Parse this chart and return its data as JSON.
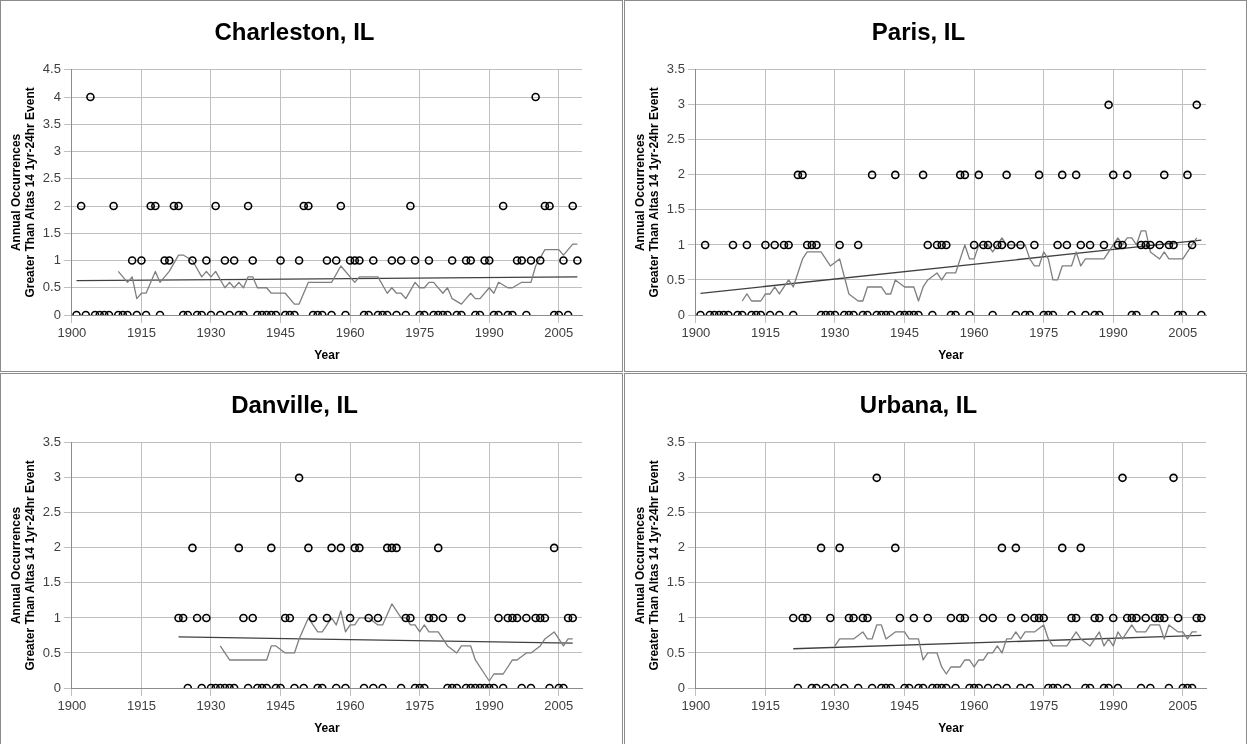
{
  "chart_data": [
    {
      "type": "scatter",
      "title": "Charleston, IL",
      "xlabel": "Year",
      "ylabel": "Annual Occurrences\nGreater Than Altas 14 1yr-24hr Event",
      "xlim": [
        1900,
        2010
      ],
      "xticks": [
        1900,
        1915,
        1930,
        1945,
        1960,
        1975,
        1990,
        2005
      ],
      "ylim": [
        0,
        4.5
      ],
      "yticks": [
        0,
        0.5,
        1,
        1.5,
        2,
        2.5,
        3,
        3.5,
        4,
        4.5
      ],
      "grid": true,
      "series": [
        {
          "type": "scatter",
          "marker": "circle",
          "color": "#000000",
          "x": [
            1901,
            1902,
            1903,
            1904,
            1905,
            1906,
            1907,
            1908,
            1909,
            1910,
            1911,
            1912,
            1913,
            1914,
            1915,
            1916,
            1917,
            1918,
            1919,
            1920,
            1921,
            1922,
            1923,
            1924,
            1925,
            1926,
            1927,
            1928,
            1929,
            1930,
            1931,
            1932,
            1933,
            1934,
            1935,
            1936,
            1937,
            1938,
            1939,
            1940,
            1941,
            1942,
            1943,
            1944,
            1945,
            1946,
            1947,
            1948,
            1949,
            1950,
            1951,
            1952,
            1953,
            1954,
            1955,
            1956,
            1957,
            1958,
            1959,
            1960,
            1961,
            1962,
            1963,
            1964,
            1965,
            1966,
            1967,
            1968,
            1969,
            1970,
            1971,
            1972,
            1973,
            1974,
            1975,
            1976,
            1977,
            1978,
            1979,
            1980,
            1981,
            1982,
            1983,
            1984,
            1985,
            1986,
            1987,
            1988,
            1989,
            1990,
            1991,
            1992,
            1993,
            1994,
            1995,
            1996,
            1997,
            1998,
            1999,
            2000,
            2001,
            2002,
            2003,
            2004,
            2005,
            2006,
            2007,
            2008,
            2009
          ],
          "values": [
            0,
            2,
            0,
            4,
            0,
            0,
            0,
            0,
            2,
            0,
            0,
            0,
            1,
            0,
            1,
            0,
            2,
            2,
            0,
            1,
            1,
            2,
            2,
            0,
            0,
            1,
            0,
            0,
            1,
            0,
            2,
            0,
            1,
            0,
            1,
            0,
            0,
            2,
            1,
            0,
            0,
            0,
            0,
            0,
            1,
            0,
            0,
            0,
            1,
            2,
            2,
            0,
            0,
            0,
            1,
            0,
            1,
            2,
            0,
            1,
            1,
            1,
            0,
            0,
            1,
            0,
            0,
            0,
            1,
            0,
            1,
            0,
            2,
            1,
            0,
            0,
            1,
            0,
            0,
            0,
            0,
            1,
            0,
            0,
            1,
            1,
            0,
            0,
            1,
            1,
            0,
            0,
            2,
            0,
            0,
            1,
            1,
            0,
            1,
            4,
            1,
            2,
            2,
            0,
            0,
            1,
            0,
            2,
            1
          ]
        },
        {
          "type": "line",
          "marker": "none",
          "color": "#7f7f7f",
          "x": [
            1910,
            1912,
            1913,
            1914,
            1915,
            1916,
            1918,
            1919,
            1921,
            1923,
            1924,
            1926,
            1928,
            1929,
            1930,
            1931,
            1933,
            1934,
            1935,
            1936,
            1937,
            1938,
            1939,
            1940,
            1942,
            1943,
            1946,
            1948,
            1949,
            1951,
            1956,
            1958,
            1961,
            1962,
            1966,
            1968,
            1969,
            1970,
            1971,
            1972,
            1974,
            1975,
            1976,
            1977,
            1978,
            1980,
            1981,
            1982,
            1984,
            1985,
            1986,
            1987,
            1988,
            1990,
            1991,
            1992,
            1994,
            1995,
            1997,
            1999,
            2000,
            2002,
            2005,
            2006,
            2008,
            2009
          ],
          "values": [
            0.8,
            0.6,
            0.7,
            0.3,
            0.4,
            0.4,
            0.8,
            0.6,
            0.8,
            1.1,
            1.1,
            1,
            0.7,
            0.8,
            0.7,
            0.8,
            0.5,
            0.6,
            0.5,
            0.6,
            0.5,
            0.7,
            0.7,
            0.5,
            0.5,
            0.4,
            0.4,
            0.2,
            0.2,
            0.6,
            0.6,
            0.9,
            0.6,
            0.7,
            0.7,
            0.4,
            0.5,
            0.4,
            0.4,
            0.3,
            0.6,
            0.5,
            0.5,
            0.6,
            0.6,
            0.4,
            0.5,
            0.3,
            0.2,
            0.3,
            0.4,
            0.3,
            0.3,
            0.5,
            0.4,
            0.6,
            0.5,
            0.5,
            0.6,
            0.6,
            0.9,
            1.2,
            1.2,
            1.1,
            1.3,
            1.3
          ]
        },
        {
          "type": "line",
          "marker": "none",
          "color": "#404040",
          "x": [
            1901,
            2009
          ],
          "values": [
            0.63,
            0.7
          ]
        }
      ]
    },
    {
      "type": "scatter",
      "title": "Paris, IL",
      "xlabel": "Year",
      "ylabel": "Annual Occurrences\nGreater Than Altas 14 1yr-24hr Event",
      "xlim": [
        1900,
        2010
      ],
      "xticks": [
        1900,
        1915,
        1930,
        1945,
        1960,
        1975,
        1990,
        2005
      ],
      "ylim": [
        0,
        3.5
      ],
      "yticks": [
        0,
        0.5,
        1,
        1.5,
        2,
        2.5,
        3,
        3.5
      ],
      "grid": true,
      "series": [
        {
          "type": "scatter",
          "marker": "circle",
          "color": "#000000",
          "x": [
            1901,
            1902,
            1903,
            1904,
            1905,
            1906,
            1907,
            1908,
            1909,
            1910,
            1911,
            1912,
            1913,
            1914,
            1915,
            1916,
            1917,
            1918,
            1919,
            1920,
            1921,
            1922,
            1923,
            1924,
            1925,
            1926,
            1927,
            1928,
            1929,
            1930,
            1931,
            1932,
            1933,
            1934,
            1935,
            1936,
            1937,
            1938,
            1939,
            1940,
            1941,
            1942,
            1943,
            1944,
            1945,
            1946,
            1947,
            1948,
            1949,
            1950,
            1951,
            1952,
            1953,
            1954,
            1955,
            1956,
            1957,
            1958,
            1959,
            1960,
            1961,
            1962,
            1963,
            1964,
            1965,
            1966,
            1967,
            1968,
            1969,
            1970,
            1971,
            1972,
            1973,
            1974,
            1975,
            1976,
            1977,
            1978,
            1979,
            1980,
            1981,
            1982,
            1983,
            1984,
            1985,
            1986,
            1987,
            1988,
            1989,
            1990,
            1991,
            1992,
            1993,
            1994,
            1995,
            1996,
            1997,
            1998,
            1999,
            2000,
            2001,
            2002,
            2003,
            2004,
            2005,
            2006,
            2007,
            2008,
            2009
          ],
          "values": [
            0,
            1,
            0,
            0,
            0,
            0,
            0,
            1,
            0,
            0,
            1,
            0,
            0,
            0,
            1,
            0,
            1,
            0,
            1,
            1,
            0,
            2,
            2,
            1,
            1,
            1,
            0,
            0,
            0,
            0,
            1,
            0,
            0,
            0,
            1,
            0,
            0,
            2,
            0,
            0,
            0,
            0,
            2,
            0,
            0,
            0,
            0,
            0,
            2,
            1,
            0,
            1,
            1,
            1,
            0,
            0,
            2,
            2,
            0,
            1,
            2,
            1,
            1,
            0,
            1,
            1,
            2,
            1,
            0,
            1,
            0,
            0,
            1,
            2,
            0,
            0,
            0,
            1,
            2,
            1,
            0,
            2,
            1,
            0,
            1,
            0,
            0,
            1,
            3,
            2,
            1,
            1,
            2,
            0,
            0,
            1,
            1,
            1,
            0,
            1,
            2,
            1,
            1,
            0,
            0,
            2,
            1,
            3,
            0
          ]
        },
        {
          "type": "line",
          "marker": "none",
          "color": "#7f7f7f",
          "x": [
            1910,
            1911,
            1912,
            1914,
            1915,
            1916,
            1917,
            1918,
            1920,
            1921,
            1923,
            1924,
            1927,
            1929,
            1931,
            1933,
            1935,
            1936,
            1937,
            1940,
            1941,
            1942,
            1943,
            1945,
            1947,
            1948,
            1949,
            1950,
            1952,
            1953,
            1954,
            1956,
            1958,
            1959,
            1960,
            1961,
            1963,
            1964,
            1965,
            1966,
            1967,
            1971,
            1972,
            1973,
            1974,
            1975,
            1976,
            1977,
            1978,
            1979,
            1981,
            1982,
            1983,
            1984,
            1988,
            1990,
            1991,
            1992,
            1993,
            1994,
            1995,
            1996,
            1997,
            1998,
            2000,
            2001,
            2002,
            2005,
            2006,
            2007,
            2008
          ],
          "values": [
            0.2,
            0.3,
            0.2,
            0.2,
            0.3,
            0.3,
            0.4,
            0.3,
            0.5,
            0.4,
            0.8,
            0.9,
            0.9,
            0.7,
            0.8,
            0.3,
            0.2,
            0.2,
            0.4,
            0.4,
            0.3,
            0.3,
            0.5,
            0.4,
            0.4,
            0.2,
            0.4,
            0.5,
            0.6,
            0.5,
            0.6,
            0.6,
            1,
            0.8,
            0.8,
            1,
            1,
            0.9,
            1,
            1.1,
            1,
            1,
            0.8,
            0.7,
            0.7,
            0.9,
            0.8,
            0.5,
            0.5,
            0.7,
            0.7,
            0.9,
            0.7,
            0.8,
            0.8,
            1,
            1.1,
            1,
            1.1,
            1.1,
            1,
            1.2,
            1.2,
            0.9,
            0.8,
            0.9,
            0.8,
            0.8,
            0.9,
            1,
            1.1
          ]
        },
        {
          "type": "line",
          "marker": "none",
          "color": "#404040",
          "x": [
            1901,
            2009
          ],
          "values": [
            0.31,
            1.07
          ]
        }
      ]
    },
    {
      "type": "scatter",
      "title": "Danville, IL",
      "xlabel": "Year",
      "ylabel": "Annual Occurrences\nGreater Than Altas 14 1yr-24hr Event",
      "xlim": [
        1900,
        2010
      ],
      "xticks": [
        1900,
        1915,
        1930,
        1945,
        1960,
        1975,
        1990,
        2005
      ],
      "ylim": [
        0,
        3.5
      ],
      "yticks": [
        0,
        0.5,
        1,
        1.5,
        2,
        2.5,
        3,
        3.5
      ],
      "grid": true,
      "series": [
        {
          "type": "scatter",
          "marker": "circle",
          "color": "#000000",
          "x": [
            1923,
            1924,
            1925,
            1926,
            1927,
            1928,
            1929,
            1930,
            1931,
            1932,
            1933,
            1934,
            1935,
            1936,
            1937,
            1938,
            1939,
            1940,
            1941,
            1942,
            1943,
            1944,
            1945,
            1946,
            1947,
            1948,
            1949,
            1950,
            1951,
            1952,
            1953,
            1954,
            1955,
            1956,
            1957,
            1958,
            1959,
            1960,
            1961,
            1962,
            1963,
            1964,
            1965,
            1966,
            1967,
            1968,
            1969,
            1970,
            1971,
            1972,
            1973,
            1974,
            1975,
            1976,
            1977,
            1978,
            1979,
            1980,
            1981,
            1982,
            1983,
            1984,
            1985,
            1986,
            1987,
            1988,
            1989,
            1990,
            1991,
            1992,
            1993,
            1994,
            1995,
            1996,
            1997,
            1998,
            1999,
            2000,
            2001,
            2002,
            2003,
            2004,
            2005,
            2006,
            2007,
            2008
          ],
          "values": [
            1,
            1,
            0,
            2,
            1,
            0,
            1,
            0,
            0,
            0,
            0,
            0,
            0,
            2,
            1,
            0,
            1,
            0,
            0,
            0,
            2,
            0,
            0,
            1,
            1,
            0,
            3,
            0,
            2,
            1,
            0,
            0,
            1,
            2,
            0,
            2,
            0,
            1,
            2,
            2,
            0,
            1,
            0,
            1,
            0,
            2,
            2,
            2,
            0,
            1,
            1,
            0,
            0,
            0,
            1,
            1,
            2,
            1,
            0,
            0,
            0,
            1,
            0,
            0,
            0,
            0,
            0,
            0,
            0,
            1,
            0,
            1,
            1,
            1,
            0,
            1,
            0,
            1,
            1,
            1,
            0,
            2,
            0,
            0,
            1,
            1
          ]
        },
        {
          "type": "line",
          "marker": "none",
          "color": "#7f7f7f",
          "x": [
            1932,
            1934,
            1942,
            1943,
            1944,
            1946,
            1948,
            1949,
            1951,
            1953,
            1954,
            1955,
            1956,
            1957,
            1958,
            1959,
            1960,
            1961,
            1962,
            1964,
            1966,
            1967,
            1969,
            1971,
            1972,
            1973,
            1974,
            1975,
            1976,
            1977,
            1979,
            1980,
            1981,
            1983,
            1984,
            1986,
            1987,
            1989,
            1990,
            1991,
            1993,
            1995,
            1996,
            1998,
            1999,
            2001,
            2002,
            2004,
            2005,
            2006,
            2007,
            2008
          ],
          "values": [
            0.6,
            0.4,
            0.4,
            0.6,
            0.6,
            0.5,
            0.5,
            0.7,
            1,
            0.8,
            0.8,
            0.9,
            1,
            0.9,
            1.1,
            0.8,
            0.9,
            0.9,
            1,
            1,
            0.9,
            0.9,
            1.2,
            1,
            1,
            0.9,
            0.9,
            0.8,
            0.9,
            0.8,
            0.8,
            0.7,
            0.6,
            0.5,
            0.6,
            0.6,
            0.4,
            0.2,
            0.1,
            0.2,
            0.2,
            0.4,
            0.4,
            0.5,
            0.5,
            0.6,
            0.7,
            0.8,
            0.7,
            0.6,
            0.7,
            0.7
          ]
        },
        {
          "type": "line",
          "marker": "none",
          "color": "#404040",
          "x": [
            1923,
            2008
          ],
          "values": [
            0.73,
            0.64
          ]
        }
      ]
    },
    {
      "type": "scatter",
      "title": "Urbana, IL",
      "xlabel": "Year",
      "ylabel": "Annual Occurrences\nGreater Than Altas 14 1yr-24hr Event",
      "xlim": [
        1900,
        2010
      ],
      "xticks": [
        1900,
        1915,
        1930,
        1945,
        1960,
        1975,
        1990,
        2005
      ],
      "ylim": [
        0,
        3.5
      ],
      "yticks": [
        0,
        0.5,
        1,
        1.5,
        2,
        2.5,
        3,
        3.5
      ],
      "grid": true,
      "series": [
        {
          "type": "scatter",
          "marker": "circle",
          "color": "#000000",
          "x": [
            1921,
            1922,
            1923,
            1924,
            1925,
            1926,
            1927,
            1928,
            1929,
            1930,
            1931,
            1932,
            1933,
            1934,
            1935,
            1936,
            1937,
            1938,
            1939,
            1940,
            1941,
            1942,
            1943,
            1944,
            1945,
            1946,
            1947,
            1948,
            1949,
            1950,
            1951,
            1952,
            1953,
            1954,
            1955,
            1956,
            1957,
            1958,
            1959,
            1960,
            1961,
            1962,
            1963,
            1964,
            1965,
            1966,
            1967,
            1968,
            1969,
            1970,
            1971,
            1972,
            1973,
            1974,
            1975,
            1976,
            1977,
            1978,
            1979,
            1980,
            1981,
            1982,
            1983,
            1984,
            1985,
            1986,
            1987,
            1988,
            1989,
            1990,
            1991,
            1992,
            1993,
            1994,
            1995,
            1996,
            1997,
            1998,
            1999,
            2000,
            2001,
            2002,
            2003,
            2004,
            2005,
            2006,
            2007,
            2008,
            2009
          ],
          "values": [
            1,
            0,
            1,
            1,
            0,
            0,
            2,
            0,
            1,
            0,
            2,
            0,
            1,
            1,
            0,
            1,
            1,
            0,
            3,
            0,
            0,
            0,
            2,
            1,
            0,
            0,
            1,
            0,
            0,
            1,
            0,
            0,
            0,
            0,
            1,
            0,
            1,
            1,
            0,
            0,
            0,
            1,
            0,
            1,
            0,
            2,
            0,
            1,
            2,
            0,
            1,
            0,
            1,
            1,
            1,
            0,
            0,
            0,
            2,
            0,
            1,
            1,
            2,
            0,
            0,
            1,
            1,
            0,
            0,
            1,
            0,
            3,
            1,
            1,
            1,
            0,
            1,
            0,
            1,
            1,
            1,
            0,
            3,
            1,
            0,
            0,
            0,
            1,
            1
          ]
        },
        {
          "type": "line",
          "marker": "none",
          "color": "#7f7f7f",
          "x": [
            1930,
            1931,
            1934,
            1936,
            1937,
            1938,
            1939,
            1940,
            1941,
            1943,
            1945,
            1946,
            1948,
            1949,
            1950,
            1952,
            1953,
            1954,
            1955,
            1957,
            1958,
            1959,
            1960,
            1961,
            1962,
            1963,
            1964,
            1965,
            1966,
            1967,
            1968,
            1969,
            1970,
            1971,
            1973,
            1975,
            1976,
            1977,
            1980,
            1981,
            1982,
            1983,
            1985,
            1986,
            1987,
            1988,
            1989,
            1990,
            1991,
            1992,
            1993,
            1994,
            1995,
            1997,
            1998,
            2000,
            2001,
            2002,
            2004,
            2005,
            2006,
            2007,
            2008
          ],
          "values": [
            0.6,
            0.7,
            0.7,
            0.8,
            0.7,
            0.7,
            0.9,
            0.9,
            0.7,
            0.8,
            0.8,
            0.7,
            0.7,
            0.4,
            0.5,
            0.5,
            0.3,
            0.2,
            0.3,
            0.3,
            0.4,
            0.4,
            0.3,
            0.4,
            0.4,
            0.5,
            0.5,
            0.6,
            0.5,
            0.7,
            0.7,
            0.8,
            0.7,
            0.8,
            0.8,
            0.9,
            0.7,
            0.6,
            0.6,
            0.7,
            0.8,
            0.7,
            0.6,
            0.7,
            0.8,
            0.6,
            0.7,
            0.6,
            0.8,
            0.7,
            0.8,
            0.9,
            0.8,
            0.8,
            0.9,
            0.9,
            0.7,
            0.9,
            0.8,
            0.8,
            0.7,
            0.8,
            0.8
          ]
        },
        {
          "type": "line",
          "marker": "none",
          "color": "#404040",
          "x": [
            1921,
            2009
          ],
          "values": [
            0.56,
            0.75
          ]
        }
      ]
    }
  ]
}
